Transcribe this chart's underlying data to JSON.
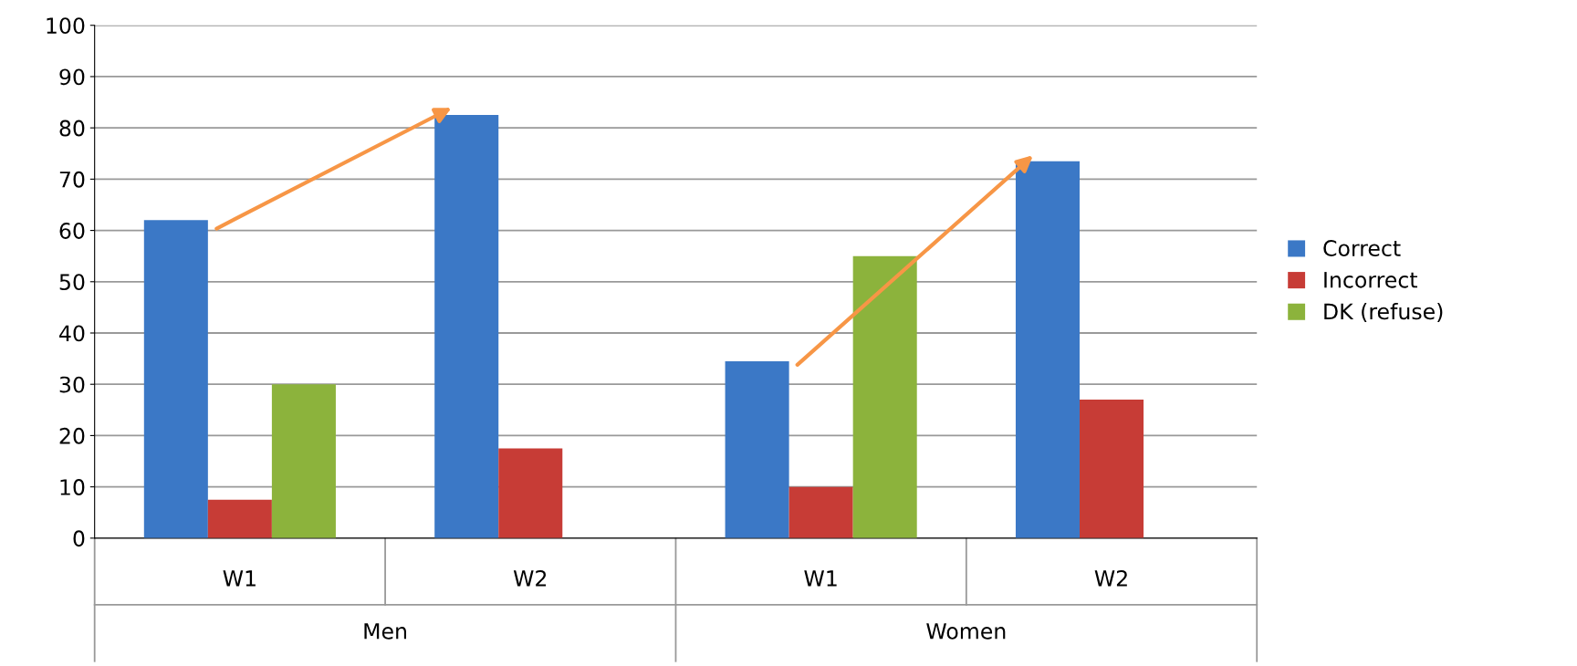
{
  "chart_data": {
    "type": "bar",
    "categories": [
      "W1",
      "W2",
      "W1",
      "W2"
    ],
    "series": [
      {
        "name": "Correct",
        "color": "#3b78c6",
        "values": [
          62,
          82.5,
          34.5,
          73.5
        ]
      },
      {
        "name": "Incorrect",
        "color": "#c73c36",
        "values": [
          7.5,
          17.5,
          10,
          27
        ]
      },
      {
        "name": "DK (refuse)",
        "color": "#8cb33c",
        "values": [
          30,
          null,
          55,
          null
        ]
      }
    ],
    "annotations": [
      "Men",
      "Women"
    ],
    "ylim": [
      0,
      100
    ],
    "yticks": [
      0,
      10,
      20,
      30,
      40,
      50,
      60,
      70,
      80,
      90,
      100
    ],
    "grid": "y",
    "legend": "right"
  }
}
